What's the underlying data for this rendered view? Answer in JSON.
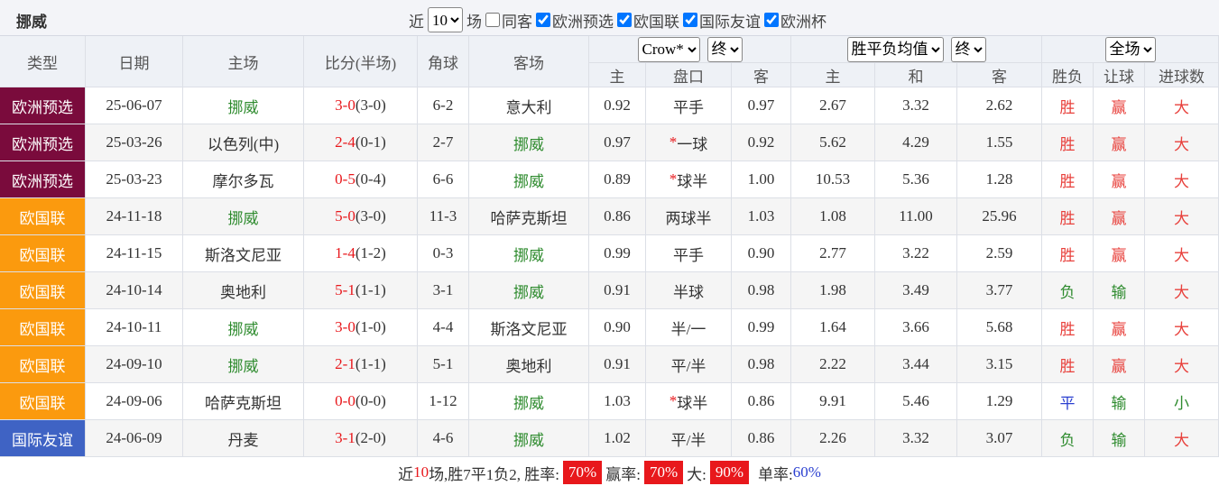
{
  "header": {
    "title": "挪威",
    "recent_prefix": "近",
    "recent_count": "10",
    "recent_suffix": "场",
    "same_venue": {
      "label": "同客",
      "checked": false
    },
    "filters": [
      {
        "label": "欧洲预选",
        "checked": true
      },
      {
        "label": "欧国联",
        "checked": true
      },
      {
        "label": "国际友谊",
        "checked": true
      },
      {
        "label": "欧洲杯",
        "checked": true
      }
    ]
  },
  "table": {
    "columns": [
      "类型",
      "日期",
      "主场",
      "比分(半场)",
      "角球",
      "客场"
    ],
    "handicap_selects": [
      "Crow*",
      "终"
    ],
    "odds_selects": [
      "胜平负均值",
      "终"
    ],
    "period_select": "全场",
    "sub_columns": [
      "主",
      "盘口",
      "客",
      "主",
      "和",
      "客",
      "胜负",
      "让球",
      "进球数"
    ],
    "outcome_colors": {
      "胜": "#e8413c",
      "负": "#2e8b2e",
      "平": "#2a3fd0",
      "赢": "#e8413c",
      "输": "#2e8b2e",
      "大": "#e8413c",
      "小": "#2e8b2e"
    },
    "rows": [
      {
        "type": "欧洲预选",
        "type_color": "#7a0b3c",
        "date": "25-06-07",
        "home": "挪威",
        "score": "3-0",
        "half": "(3-0)",
        "corner": "6-2",
        "away": "意大利",
        "odds_home": "0.92",
        "handicap": "平手",
        "odds_away": "0.97",
        "win": "2.67",
        "draw": "3.32",
        "lose": "2.62",
        "result": "胜",
        "handicap_result": "赢",
        "goals_result": "大"
      },
      {
        "type": "欧洲预选",
        "type_color": "#7a0b3c",
        "date": "25-03-26",
        "home": "以色列(中)",
        "score": "2-4",
        "half": "(0-1)",
        "corner": "2-7",
        "away": "挪威",
        "odds_home": "0.97",
        "handicap_mark": "*",
        "handicap": "一球",
        "odds_away": "0.92",
        "win": "5.62",
        "draw": "4.29",
        "lose": "1.55",
        "result": "胜",
        "handicap_result": "赢",
        "goals_result": "大"
      },
      {
        "type": "欧洲预选",
        "type_color": "#7a0b3c",
        "date": "25-03-23",
        "home": "摩尔多瓦",
        "score": "0-5",
        "half": "(0-4)",
        "corner": "6-6",
        "away": "挪威",
        "odds_home": "0.89",
        "handicap_mark": "*",
        "handicap": "球半",
        "odds_away": "1.00",
        "win": "10.53",
        "draw": "5.36",
        "lose": "1.28",
        "result": "胜",
        "handicap_result": "赢",
        "goals_result": "大"
      },
      {
        "type": "欧国联",
        "type_color": "#fb9a0e",
        "date": "24-11-18",
        "home": "挪威",
        "score": "5-0",
        "half": "(3-0)",
        "corner": "11-3",
        "away": "哈萨克斯坦",
        "odds_home": "0.86",
        "handicap": "两球半",
        "odds_away": "1.03",
        "win": "1.08",
        "draw": "11.00",
        "lose": "25.96",
        "result": "胜",
        "handicap_result": "赢",
        "goals_result": "大"
      },
      {
        "type": "欧国联",
        "type_color": "#fb9a0e",
        "date": "24-11-15",
        "home": "斯洛文尼亚",
        "score": "1-4",
        "half": "(1-2)",
        "corner": "0-3",
        "away": "挪威",
        "odds_home": "0.99",
        "handicap": "平手",
        "odds_away": "0.90",
        "win": "2.77",
        "draw": "3.22",
        "lose": "2.59",
        "result": "胜",
        "handicap_result": "赢",
        "goals_result": "大"
      },
      {
        "type": "欧国联",
        "type_color": "#fb9a0e",
        "date": "24-10-14",
        "home": "奥地利",
        "score": "5-1",
        "half": "(1-1)",
        "corner": "3-1",
        "away": "挪威",
        "odds_home": "0.91",
        "handicap": "半球",
        "odds_away": "0.98",
        "win": "1.98",
        "draw": "3.49",
        "lose": "3.77",
        "result": "负",
        "handicap_result": "输",
        "goals_result": "大"
      },
      {
        "type": "欧国联",
        "type_color": "#fb9a0e",
        "date": "24-10-11",
        "home": "挪威",
        "score": "3-0",
        "half": "(1-0)",
        "corner": "4-4",
        "away": "斯洛文尼亚",
        "odds_home": "0.90",
        "handicap": "半/一",
        "odds_away": "0.99",
        "win": "1.64",
        "draw": "3.66",
        "lose": "5.68",
        "result": "胜",
        "handicap_result": "赢",
        "goals_result": "大"
      },
      {
        "type": "欧国联",
        "type_color": "#fb9a0e",
        "date": "24-09-10",
        "home": "挪威",
        "score": "2-1",
        "half": "(1-1)",
        "corner": "5-1",
        "away": "奥地利",
        "odds_home": "0.91",
        "handicap": "平/半",
        "odds_away": "0.98",
        "win": "2.22",
        "draw": "3.44",
        "lose": "3.15",
        "result": "胜",
        "handicap_result": "赢",
        "goals_result": "大"
      },
      {
        "type": "欧国联",
        "type_color": "#fb9a0e",
        "date": "24-09-06",
        "home": "哈萨克斯坦",
        "score": "0-0",
        "half": "(0-0)",
        "corner": "1-12",
        "away": "挪威",
        "odds_home": "1.03",
        "handicap_mark": "*",
        "handicap": "球半",
        "odds_away": "0.86",
        "win": "9.91",
        "draw": "5.46",
        "lose": "1.29",
        "result": "平",
        "handicap_result": "输",
        "goals_result": "小"
      },
      {
        "type": "国际友谊",
        "type_color": "#3f63c4",
        "date": "24-06-09",
        "home": "丹麦",
        "score": "3-1",
        "half": "(2-0)",
        "corner": "4-6",
        "away": "挪威",
        "odds_home": "1.02",
        "handicap": "平/半",
        "odds_away": "0.86",
        "win": "2.26",
        "draw": "3.32",
        "lose": "3.07",
        "result": "负",
        "handicap_result": "输",
        "goals_result": "大"
      }
    ]
  },
  "footer": {
    "prefix": "近",
    "count": "10",
    "summary": "场,胜7平1负2, 胜率:",
    "win_rate": "70%",
    "handicap_label": "赢率:",
    "handicap_rate": "70%",
    "big_label": "大:",
    "big_rate": "90%",
    "odd_label": "单率:",
    "odd_rate": "60%"
  }
}
